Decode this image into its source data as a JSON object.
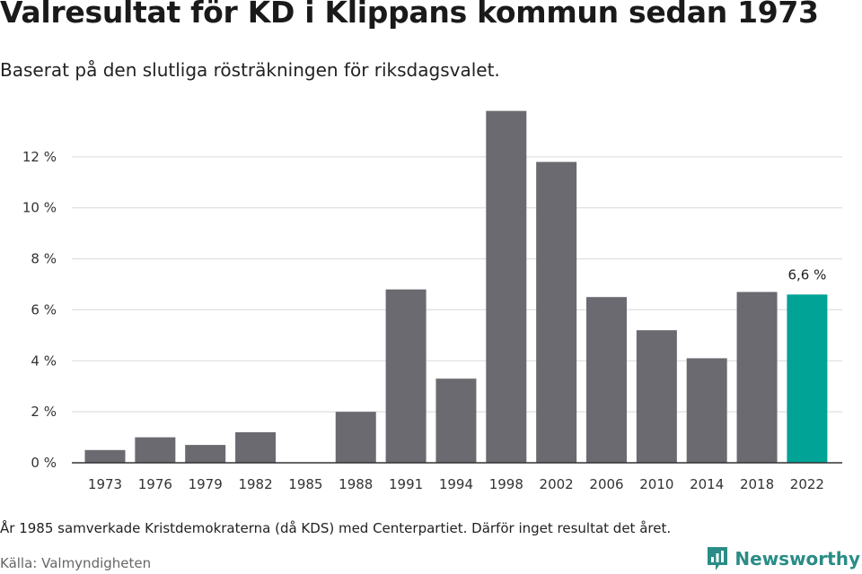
{
  "header": {
    "title": "Valresultat för KD i Klippans kommun sedan 1973",
    "subtitle": "Baserat på den slutliga rösträkningen för riksdagsvalet."
  },
  "footer": {
    "note": "År 1985 samverkade Kristdemokraterna (då KDS) med Centerpartiet. Därför inget resultat det året.",
    "source": "Källa: Valmyndigheten",
    "brand": "Newsworthy",
    "brand_icon": "newsworthy-logo-icon"
  },
  "colors": {
    "bar": "#6b6a70",
    "highlight": "#00a396",
    "grid": "#d9d9d9",
    "axis": "#333333"
  },
  "chart_data": {
    "type": "bar",
    "title": "Valresultat för KD i Klippans kommun sedan 1973",
    "subtitle": "Baserat på den slutliga rösträkningen för riksdagsvalet.",
    "xlabel": "",
    "ylabel": "",
    "categories": [
      "1973",
      "1976",
      "1979",
      "1982",
      "1985",
      "1988",
      "1991",
      "1994",
      "1998",
      "2002",
      "2006",
      "2010",
      "2014",
      "2018",
      "2022"
    ],
    "values": [
      0.5,
      1.0,
      0.7,
      1.2,
      null,
      2.0,
      6.8,
      3.3,
      13.8,
      11.8,
      6.5,
      5.2,
      4.1,
      6.7,
      6.6
    ],
    "highlight_category": "2022",
    "data_labels": [
      {
        "category": "2022",
        "text": "6,6 %"
      }
    ],
    "y_ticks": [
      0,
      2,
      4,
      6,
      8,
      10,
      12
    ],
    "y_tick_labels": [
      "0 %",
      "2 %",
      "4 %",
      "6 %",
      "8 %",
      "10 %",
      "12 %"
    ],
    "ylim": [
      0,
      14
    ],
    "grid": true,
    "legend": "none"
  }
}
